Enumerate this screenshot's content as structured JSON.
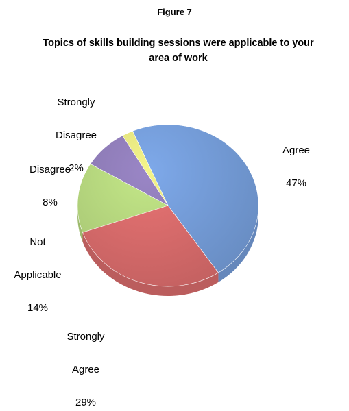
{
  "figure_label": "Figure 7",
  "chart_data": {
    "type": "pie",
    "title": "Topics of skills building sessions were applicable to your area of work",
    "slices": [
      {
        "label": "Agree",
        "label_lines": [
          "Agree"
        ],
        "percent_label": "47%",
        "value": 47,
        "color": "#7ea9ea"
      },
      {
        "label": "Strongly Agree",
        "label_lines": [
          "Strongly",
          "Agree"
        ],
        "percent_label": "29%",
        "value": 29,
        "color": "#ea7474"
      },
      {
        "label": "Not Applicable",
        "label_lines": [
          "Not",
          "Applicable"
        ],
        "percent_label": "14%",
        "value": 14,
        "color": "#c4e888"
      },
      {
        "label": "Disagree",
        "label_lines": [
          "Disagree"
        ],
        "percent_label": "8%",
        "value": 8,
        "color": "#9a86c6"
      },
      {
        "label": "Strongly Disagree",
        "label_lines": [
          "Strongly",
          "Disagree"
        ],
        "percent_label": "2%",
        "value": 2,
        "color": "#f5f58a"
      }
    ],
    "style": "3d",
    "legend": "none"
  }
}
